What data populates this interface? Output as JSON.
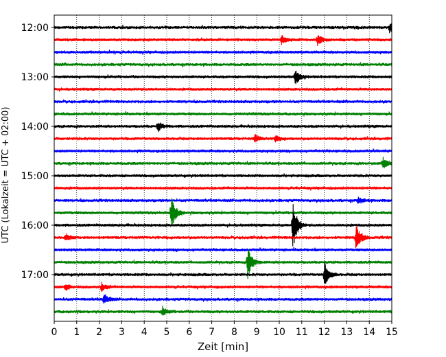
{
  "chart_data": {
    "type": "line",
    "xlabel": "Zeit  [min]",
    "ylabel": "UTC (Lokalzeit = UTC + 02:00)",
    "xlim": [
      0,
      15
    ],
    "x_ticks": [
      0,
      1,
      2,
      3,
      4,
      5,
      6,
      7,
      8,
      9,
      10,
      11,
      12,
      13,
      14,
      15
    ],
    "y_ticks": [
      "12:00",
      "13:00",
      "14:00",
      "15:00",
      "16:00",
      "17:00"
    ],
    "grid": "vertical dotted lines at each minute",
    "trace_interval_minutes": 15,
    "trace_colors": [
      "#000000",
      "#ff0000",
      "#0000ff",
      "#008000"
    ],
    "traces": [
      {
        "start": "12:00",
        "color": "#000000",
        "events": [
          {
            "t": 14.9,
            "amp": 0.6
          }
        ]
      },
      {
        "start": "12:15",
        "color": "#ff0000",
        "events": [
          {
            "t": 10.1,
            "amp": 0.5
          },
          {
            "t": 11.7,
            "amp": 0.6
          }
        ]
      },
      {
        "start": "12:30",
        "color": "#0000ff",
        "events": []
      },
      {
        "start": "12:45",
        "color": "#008000",
        "events": []
      },
      {
        "start": "13:00",
        "color": "#000000",
        "events": [
          {
            "t": 10.7,
            "amp": 1.0
          }
        ]
      },
      {
        "start": "13:15",
        "color": "#ff0000",
        "events": []
      },
      {
        "start": "13:30",
        "color": "#0000ff",
        "events": []
      },
      {
        "start": "13:45",
        "color": "#008000",
        "events": []
      },
      {
        "start": "14:00",
        "color": "#000000",
        "events": [
          {
            "t": 4.6,
            "amp": 0.6
          }
        ]
      },
      {
        "start": "14:15",
        "color": "#ff0000",
        "events": [
          {
            "t": 8.9,
            "amp": 0.5
          },
          {
            "t": 9.8,
            "amp": 0.4
          }
        ]
      },
      {
        "start": "14:30",
        "color": "#0000ff",
        "events": []
      },
      {
        "start": "14:45",
        "color": "#008000",
        "events": [
          {
            "t": 14.6,
            "amp": 0.7
          }
        ]
      },
      {
        "start": "15:00",
        "color": "#000000",
        "events": []
      },
      {
        "start": "15:15",
        "color": "#ff0000",
        "events": []
      },
      {
        "start": "15:30",
        "color": "#0000ff",
        "events": [
          {
            "t": 13.5,
            "amp": 0.4
          }
        ]
      },
      {
        "start": "15:45",
        "color": "#008000",
        "events": [
          {
            "t": 5.2,
            "amp": 2.0
          }
        ]
      },
      {
        "start": "16:00",
        "color": "#000000",
        "events": [
          {
            "t": 10.6,
            "amp": 3.0
          }
        ]
      },
      {
        "start": "16:15",
        "color": "#ff0000",
        "events": [
          {
            "t": 13.4,
            "amp": 1.8
          },
          {
            "t": 0.5,
            "amp": 0.4
          }
        ]
      },
      {
        "start": "16:30",
        "color": "#0000ff",
        "events": []
      },
      {
        "start": "16:45",
        "color": "#008000",
        "events": [
          {
            "t": 8.6,
            "amp": 2.0
          }
        ]
      },
      {
        "start": "17:00",
        "color": "#000000",
        "events": [
          {
            "t": 12.0,
            "amp": 1.6
          }
        ]
      },
      {
        "start": "17:15",
        "color": "#ff0000",
        "events": [
          {
            "t": 2.1,
            "amp": 0.5
          },
          {
            "t": 0.5,
            "amp": 0.4
          }
        ]
      },
      {
        "start": "17:30",
        "color": "#0000ff",
        "events": [
          {
            "t": 2.2,
            "amp": 0.7
          }
        ]
      },
      {
        "start": "17:45",
        "color": "#008000",
        "events": [
          {
            "t": 4.8,
            "amp": 0.5
          }
        ]
      }
    ]
  }
}
